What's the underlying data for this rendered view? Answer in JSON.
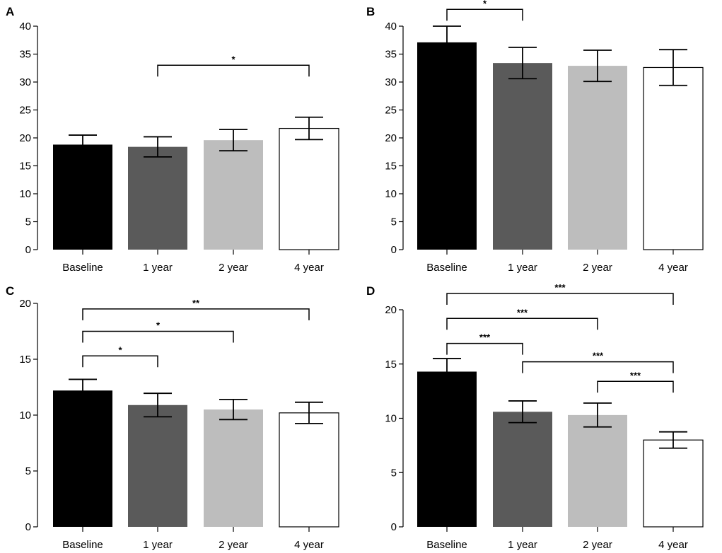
{
  "colors": {
    "baseline": "#000000",
    "year1": "#5a5a5a",
    "year2": "#bdbdbd",
    "year4": "#ffffff",
    "outline": "#000000"
  },
  "chart_data": [
    {
      "panel": "A",
      "type": "bar",
      "categories": [
        "Baseline",
        "1 year",
        "2 year",
        "4 year"
      ],
      "values": [
        18.8,
        18.4,
        19.6,
        21.7
      ],
      "errors": [
        1.7,
        1.8,
        1.9,
        2.0
      ],
      "ylim": [
        0,
        40
      ],
      "yticks": [
        0,
        5,
        10,
        15,
        20,
        25,
        30,
        35,
        40
      ],
      "significance": [
        {
          "from": 1,
          "to": 3,
          "label": "*",
          "level": 33
        }
      ]
    },
    {
      "panel": "B",
      "type": "bar",
      "categories": [
        "Baseline",
        "1 year",
        "2 year",
        "4 year"
      ],
      "values": [
        37.1,
        33.4,
        32.9,
        32.6
      ],
      "errors": [
        2.9,
        2.8,
        2.8,
        3.2
      ],
      "ylim": [
        0,
        40
      ],
      "yticks": [
        0,
        5,
        10,
        15,
        20,
        25,
        30,
        35,
        40
      ],
      "significance": [
        {
          "from": 0,
          "to": 1,
          "label": "*",
          "level": 43
        }
      ]
    },
    {
      "panel": "C",
      "type": "bar",
      "categories": [
        "Baseline",
        "1 year",
        "2 year",
        "4 year"
      ],
      "values": [
        12.2,
        10.9,
        10.5,
        10.2
      ],
      "errors": [
        1.0,
        1.05,
        0.9,
        0.95
      ],
      "ylim": [
        0,
        20
      ],
      "yticks": [
        0,
        5,
        10,
        15,
        20
      ],
      "significance": [
        {
          "from": 0,
          "to": 3,
          "label": "**",
          "level": 19.5
        },
        {
          "from": 0,
          "to": 2,
          "label": "*",
          "level": 17.5
        },
        {
          "from": 0,
          "to": 1,
          "label": "*",
          "level": 15.3
        }
      ]
    },
    {
      "panel": "D",
      "type": "bar",
      "categories": [
        "Baseline",
        "1 year",
        "2 year",
        "4 year"
      ],
      "values": [
        14.3,
        10.6,
        10.3,
        8.0
      ],
      "errors": [
        1.2,
        1.0,
        1.1,
        0.75
      ],
      "ylim": [
        0,
        20
      ],
      "yticks": [
        0,
        5,
        10,
        15,
        20
      ],
      "significance": [
        {
          "from": 0,
          "to": 3,
          "label": "***",
          "level": 21.5
        },
        {
          "from": 0,
          "to": 2,
          "label": "***",
          "level": 19.2
        },
        {
          "from": 0,
          "to": 1,
          "label": "***",
          "level": 16.9
        },
        {
          "from": 1,
          "to": 3,
          "label": "***",
          "level": 15.2
        },
        {
          "from": 2,
          "to": 3,
          "label": "***",
          "level": 13.4
        }
      ]
    }
  ]
}
